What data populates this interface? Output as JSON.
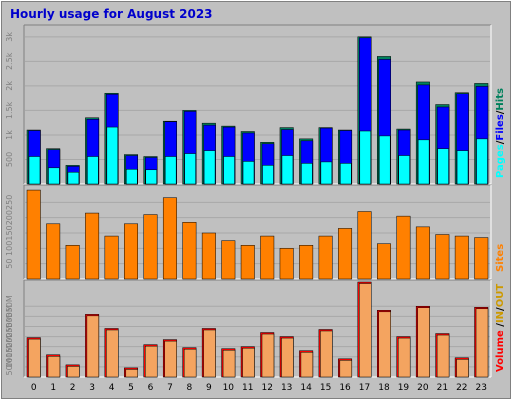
{
  "title": "Hourly usage for August 2023",
  "colors": {
    "background": "#c0c0c0",
    "title": "#0000cc",
    "hits": "#00805c",
    "files": "#0000ff",
    "pages": "#00ffff",
    "sites": "#ff8000",
    "volume_in": "#cc9900",
    "volume_out": "#cc9900",
    "volume": "#ff0000",
    "volume_bar": "#f4a460"
  },
  "chart_data": [
    {
      "type": "bar",
      "name": "hits-files-pages",
      "categories": [
        "0",
        "1",
        "2",
        "3",
        "4",
        "5",
        "6",
        "7",
        "8",
        "9",
        "10",
        "11",
        "12",
        "13",
        "14",
        "15",
        "16",
        "17",
        "18",
        "19",
        "20",
        "21",
        "22",
        "23"
      ],
      "series": [
        {
          "name": "Hits",
          "values": [
            1100,
            720,
            380,
            1350,
            1850,
            600,
            560,
            1280,
            1500,
            1240,
            1180,
            1070,
            850,
            1150,
            920,
            1150,
            1100,
            3000,
            2600,
            1120,
            2080,
            1620,
            1860,
            2050
          ]
        },
        {
          "name": "Files",
          "values": [
            1090,
            700,
            360,
            1320,
            1830,
            580,
            540,
            1270,
            1480,
            1200,
            1160,
            1040,
            820,
            1110,
            880,
            1140,
            1090,
            2980,
            2540,
            1100,
            2020,
            1570,
            1840,
            1990
          ]
        },
        {
          "name": "Pages",
          "values": [
            560,
            330,
            240,
            560,
            1160,
            300,
            290,
            560,
            620,
            680,
            560,
            460,
            380,
            580,
            420,
            450,
            420,
            1080,
            980,
            580,
            900,
            720,
            680,
            920
          ]
        }
      ],
      "ytick_labels": [
        "500",
        "1k",
        "1.5k",
        "2k",
        "2.5k",
        "3k"
      ],
      "ylim": [
        0,
        3200
      ],
      "legend": [
        "Pages",
        "Files",
        "Hits"
      ],
      "legend_separator": "/"
    },
    {
      "type": "bar",
      "name": "sites",
      "categories": [
        "0",
        "1",
        "2",
        "3",
        "4",
        "5",
        "6",
        "7",
        "8",
        "9",
        "10",
        "11",
        "12",
        "13",
        "14",
        "15",
        "16",
        "17",
        "18",
        "19",
        "20",
        "21",
        "22",
        "23"
      ],
      "series": [
        {
          "name": "Sites",
          "values": [
            290,
            180,
            110,
            215,
            140,
            180,
            210,
            265,
            185,
            150,
            125,
            110,
            140,
            100,
            110,
            140,
            165,
            220,
            115,
            205,
            170,
            145,
            140,
            135
          ]
        }
      ],
      "ytick_labels": [
        "50",
        "100",
        "150",
        "200",
        "250"
      ],
      "ylim": [
        0,
        300
      ],
      "legend": [
        "Sites"
      ]
    },
    {
      "type": "bar",
      "name": "volume",
      "categories": [
        "0",
        "1",
        "2",
        "3",
        "4",
        "5",
        "6",
        "7",
        "8",
        "9",
        "10",
        "11",
        "12",
        "13",
        "14",
        "15",
        "16",
        "17",
        "18",
        "19",
        "20",
        "21",
        "22",
        "23"
      ],
      "series": [
        {
          "name": "Volume",
          "values": [
            195,
            110,
            60,
            310,
            240,
            45,
            160,
            185,
            145,
            240,
            140,
            150,
            220,
            200,
            130,
            235,
            90,
            470,
            330,
            200,
            350,
            215,
            95,
            345
          ]
        }
      ],
      "ytick_labels": [
        "50M",
        "100M",
        "150M",
        "200M",
        "250M",
        "300M",
        "350M"
      ],
      "tick_values": [
        50,
        100,
        150,
        200,
        250,
        300,
        350
      ],
      "ylim": [
        0,
        470
      ],
      "legend": [
        "Volume",
        "IN",
        "OUT"
      ],
      "legend_separator": "/"
    }
  ]
}
